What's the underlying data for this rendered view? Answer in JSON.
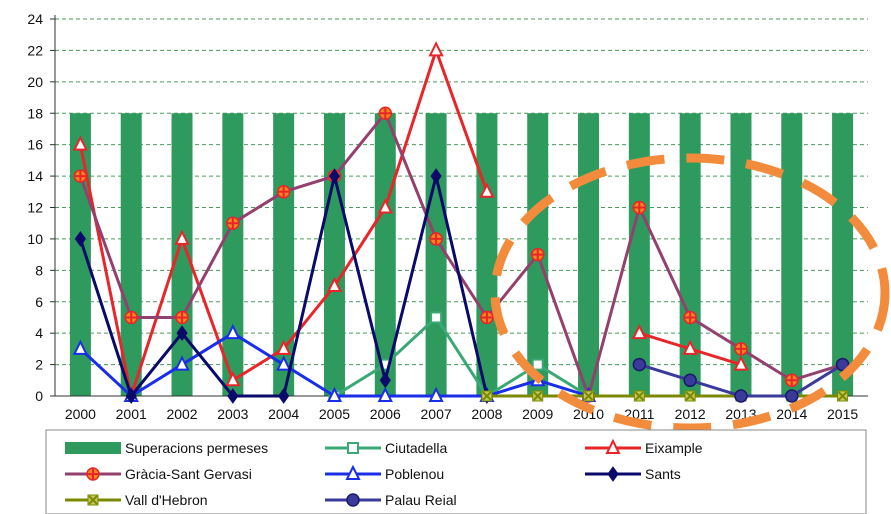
{
  "chart_data": {
    "type": "bar",
    "categories": [
      "2000",
      "2001",
      "2002",
      "2003",
      "2004",
      "2005",
      "2006",
      "2007",
      "2008",
      "2009",
      "2010",
      "2011",
      "2012",
      "2013",
      "2014",
      "2015"
    ],
    "y_ticks": [
      "0",
      "2",
      "4",
      "6",
      "8",
      "10",
      "12",
      "14",
      "16",
      "18",
      "20",
      "22",
      "24"
    ],
    "ylim": [
      0,
      24
    ],
    "grid": "horizontal dashed",
    "legend_position": "bottom",
    "bar_series": {
      "name": "Superacions permeses",
      "color": "#2e9a5e",
      "values": [
        18,
        18,
        18,
        18,
        18,
        18,
        18,
        18,
        18,
        18,
        18,
        18,
        18,
        18,
        18,
        18
      ]
    },
    "line_series": [
      {
        "name": "Ciutadella",
        "color": "#3aa875",
        "marker": "square-open",
        "values": [
          null,
          null,
          null,
          null,
          null,
          0,
          2,
          5,
          0,
          2,
          0,
          null,
          null,
          null,
          null,
          null
        ]
      },
      {
        "name": "Eixample",
        "color": "#e8262a",
        "marker": "triangle-open",
        "values": [
          16,
          0,
          10,
          1,
          3,
          7,
          12,
          22,
          13,
          null,
          null,
          4,
          3,
          2,
          null,
          null
        ]
      },
      {
        "name": "Gràcia-Sant Gervasi",
        "color": "#94406e",
        "marker": "cross",
        "values": [
          14,
          5,
          5,
          11,
          13,
          14,
          18,
          10,
          5,
          9,
          0,
          12,
          5,
          3,
          1,
          2
        ]
      },
      {
        "name": "Poblenou",
        "color": "#1a2ee8",
        "marker": "triangle-open",
        "values": [
          3,
          0,
          2,
          4,
          2,
          0,
          0,
          0,
          0,
          1,
          0,
          null,
          null,
          null,
          null,
          null
        ]
      },
      {
        "name": "Sants",
        "color": "#0a0a6a",
        "marker": "diamond",
        "values": [
          10,
          0,
          4,
          0,
          0,
          14,
          1,
          14,
          0,
          null,
          null,
          null,
          null,
          null,
          null,
          null
        ]
      },
      {
        "name": "Vall d'Hebron",
        "color": "#7a8a00",
        "marker": "x",
        "values": [
          null,
          null,
          null,
          null,
          null,
          null,
          null,
          null,
          0,
          0,
          0,
          0,
          0,
          0,
          0,
          0
        ]
      },
      {
        "name": "Palau Reial",
        "color": "#3a3a9a",
        "marker": "circle",
        "values": [
          null,
          null,
          null,
          null,
          null,
          null,
          null,
          null,
          null,
          null,
          null,
          2,
          1,
          0,
          0,
          2
        ]
      }
    ],
    "annotation": {
      "type": "dashed-ellipse",
      "color": "#f28c3c"
    }
  }
}
